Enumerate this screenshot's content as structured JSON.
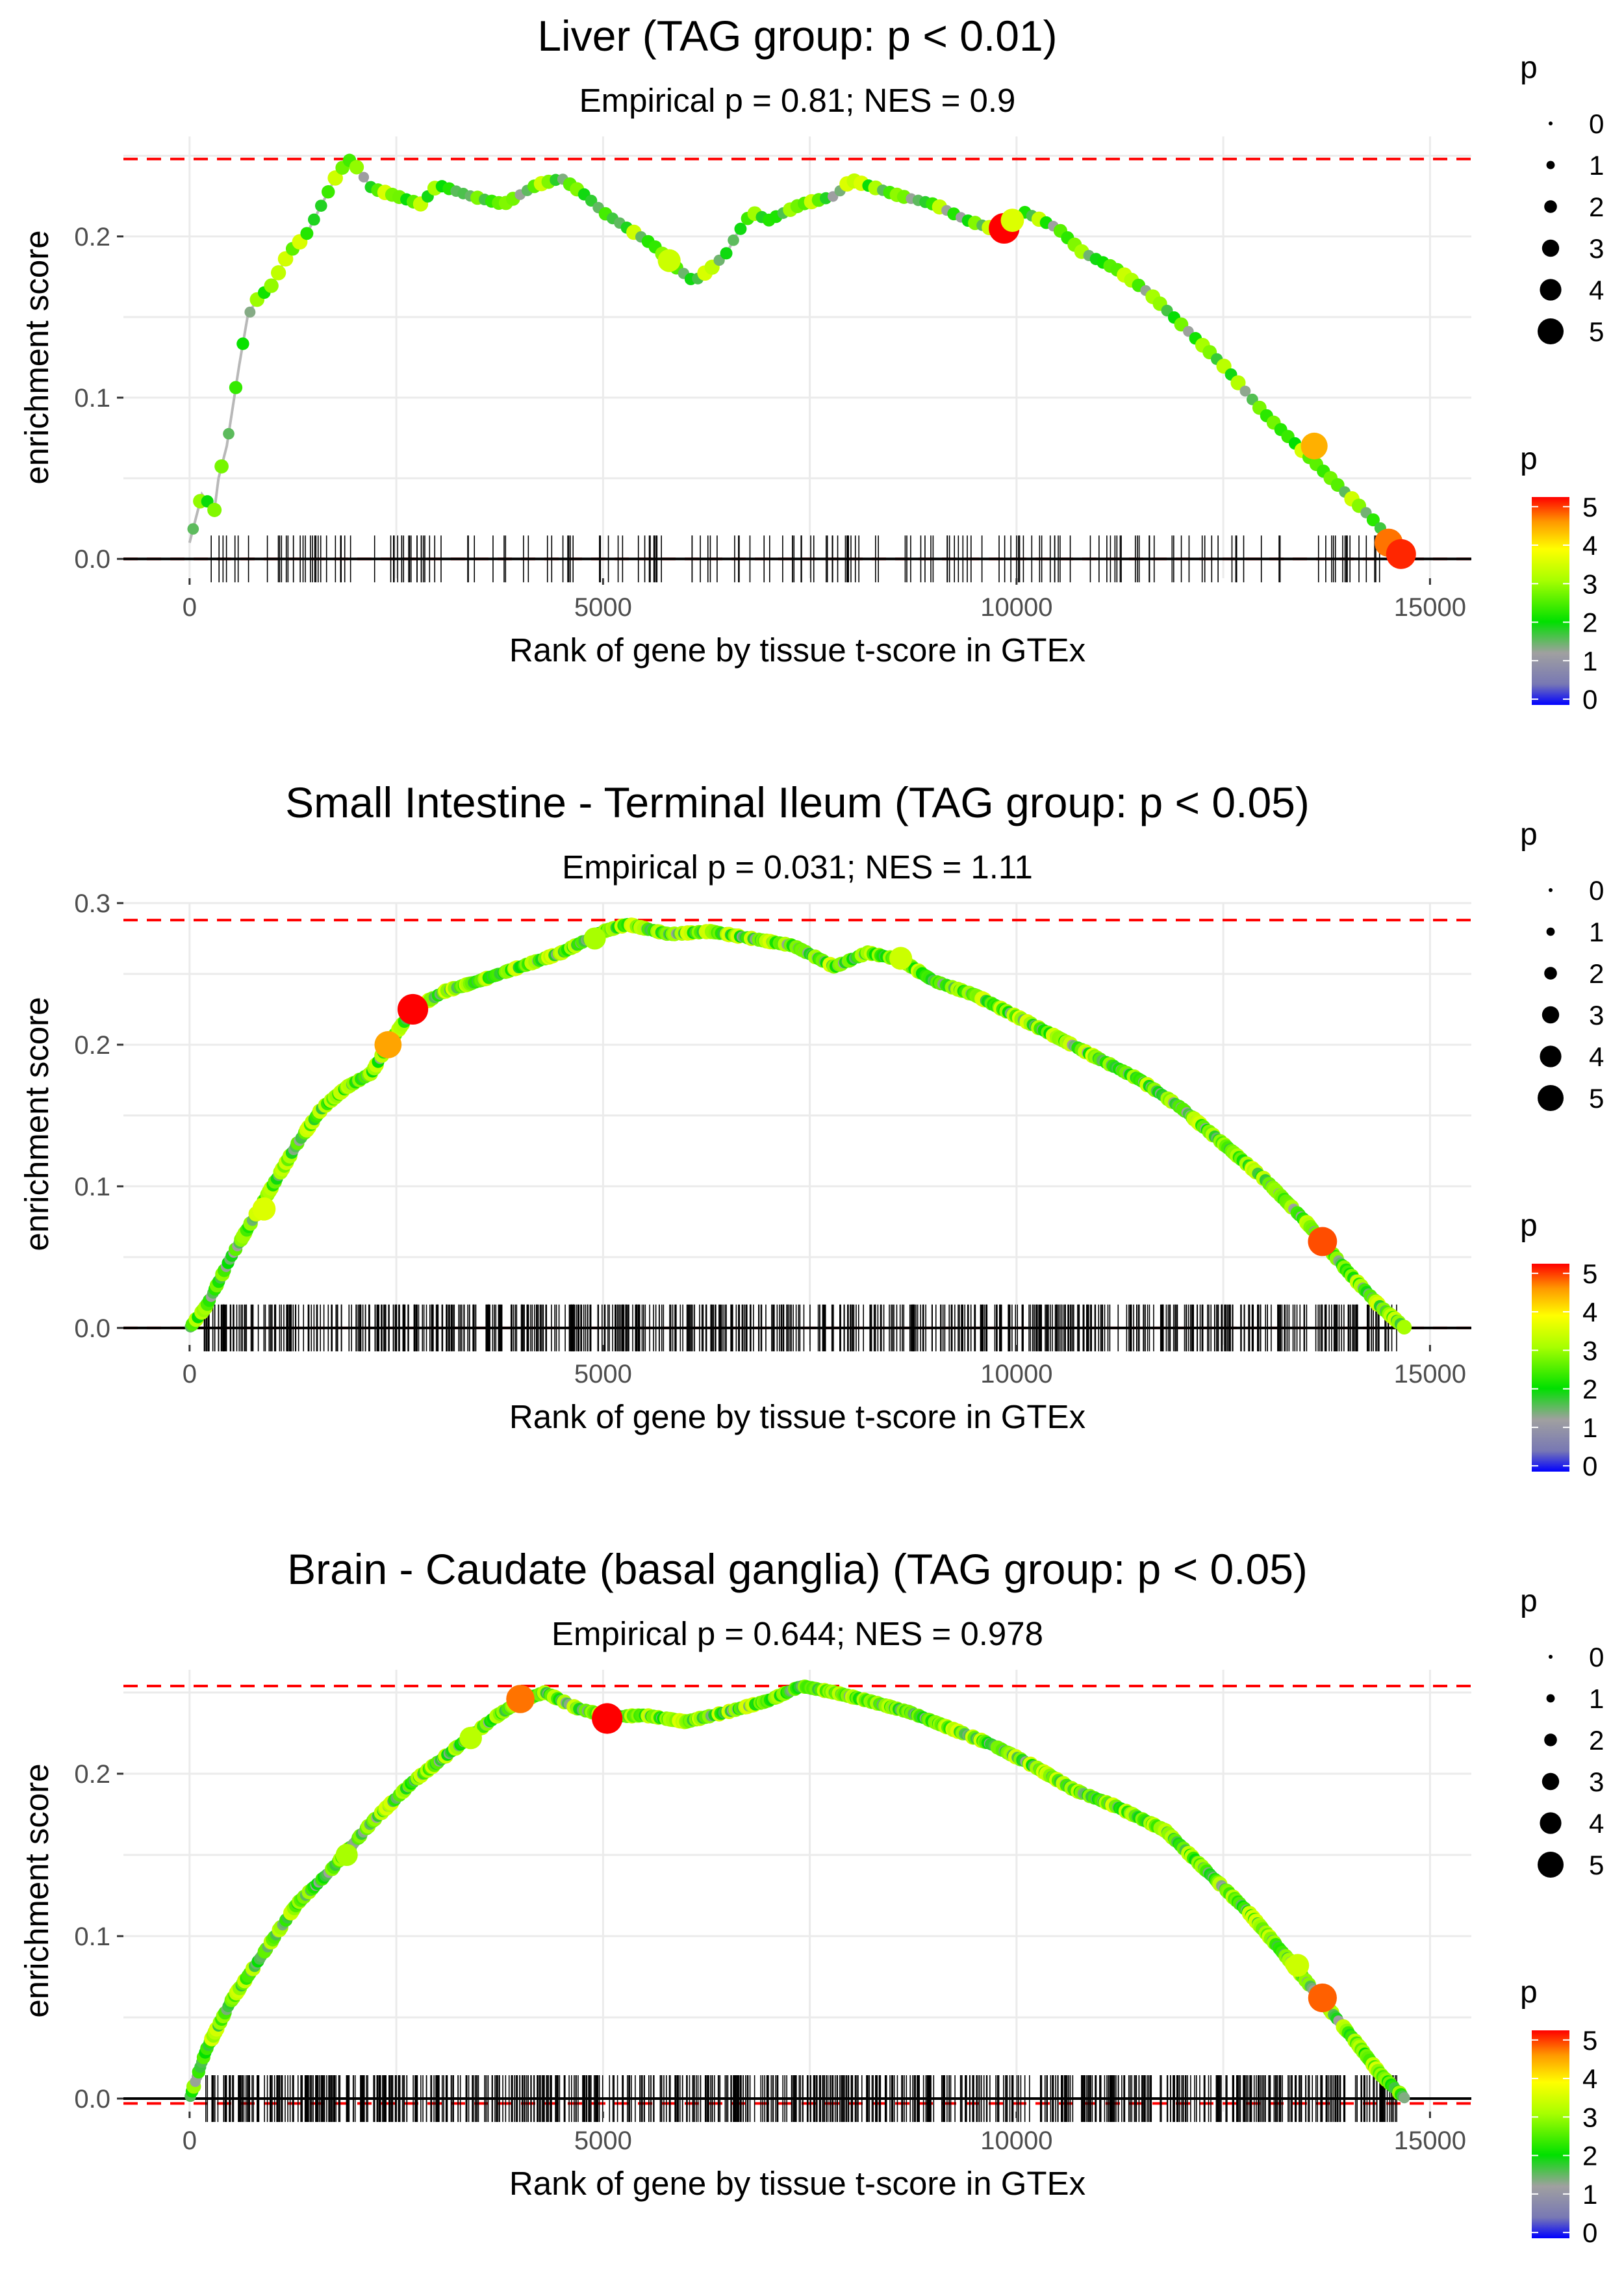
{
  "chart_data": [
    {
      "type": "line",
      "title": "Liver (TAG group: p < 0.01)",
      "subtitle": "Empirical p = 0.81; NES = 0.9",
      "xlabel": "Rank of gene by tissue t-score in GTEx",
      "ylabel": "enrichment score",
      "xlim": [
        -800,
        15500
      ],
      "ylim": [
        -0.012,
        0.262
      ],
      "x_ticks": [
        0,
        5000,
        10000,
        15000
      ],
      "x_tick_labels": [
        "0",
        "5000",
        "10000",
        "15000"
      ],
      "y_ticks": [
        0.0,
        0.1,
        0.2
      ],
      "y_tick_labels": [
        "0.0",
        "0.1",
        "0.2"
      ],
      "max_es": 0.248,
      "min_es": 0.0,
      "hit_count": 190,
      "curve": {
        "x": [
          0,
          150,
          300,
          350,
          450,
          600,
          700,
          800,
          1000,
          1200,
          1400,
          1600,
          1800,
          1950,
          2200,
          2500,
          2800,
          3000,
          3400,
          3800,
          4200,
          4500,
          4800,
          5000,
          5300,
          5600,
          5900,
          6100,
          6300,
          6500,
          6600,
          6800,
          7000,
          7400,
          7800,
          8000,
          8300,
          8600,
          9000,
          9400,
          9700,
          9900,
          10100,
          10300,
          10500,
          10800,
          11200,
          11600,
          12000,
          12500,
          13000,
          13500,
          14000,
          14300,
          14550,
          14700
        ],
        "y": [
          0.01,
          0.04,
          0.03,
          0.05,
          0.07,
          0.12,
          0.15,
          0.16,
          0.17,
          0.19,
          0.2,
          0.22,
          0.24,
          0.248,
          0.23,
          0.225,
          0.22,
          0.232,
          0.225,
          0.22,
          0.232,
          0.236,
          0.225,
          0.215,
          0.205,
          0.195,
          0.18,
          0.172,
          0.18,
          0.19,
          0.2,
          0.215,
          0.21,
          0.22,
          0.225,
          0.235,
          0.23,
          0.225,
          0.22,
          0.21,
          0.205,
          0.205,
          0.215,
          0.21,
          0.205,
          0.19,
          0.18,
          0.165,
          0.145,
          0.12,
          0.09,
          0.065,
          0.04,
          0.025,
          0.01,
          0.0
        ]
      },
      "highlight_points": [
        {
          "x": 9850,
          "y": 0.205,
          "p": 5.2
        },
        {
          "x": 13600,
          "y": 0.07,
          "p": 4.2
        },
        {
          "x": 14500,
          "y": 0.01,
          "p": 4.6
        },
        {
          "x": 14650,
          "y": 0.003,
          "p": 5.0
        },
        {
          "x": 5800,
          "y": 0.185,
          "p": 3.2
        },
        {
          "x": 9950,
          "y": 0.21,
          "p": 3.3
        }
      ],
      "legend_size": {
        "title": "p",
        "labels": [
          "0",
          "1",
          "2",
          "3",
          "4",
          "5"
        ]
      },
      "legend_color": {
        "title": "p",
        "labels": [
          "5",
          "4",
          "3",
          "2",
          "1",
          "0"
        ]
      }
    },
    {
      "type": "line",
      "title": "Small Intestine - Terminal Ileum (TAG group: p < 0.05)",
      "subtitle": "Empirical p = 0.031; NES = 1.11",
      "xlabel": "Rank of gene by tissue t-score in GTEx",
      "ylabel": "enrichment score",
      "xlim": [
        -800,
        15500
      ],
      "ylim": [
        -0.012,
        0.3
      ],
      "x_ticks": [
        0,
        5000,
        10000,
        15000
      ],
      "x_tick_labels": [
        "0",
        "5000",
        "10000",
        "15000"
      ],
      "y_ticks": [
        0.0,
        0.1,
        0.2,
        0.3
      ],
      "y_tick_labels": [
        "0.0",
        "0.1",
        "0.2",
        "0.3"
      ],
      "max_es": 0.288,
      "min_es": 0.0,
      "hit_count": 720,
      "curve": {
        "x": [
          0,
          200,
          500,
          800,
          1000,
          1300,
          1600,
          1900,
          2200,
          2400,
          2700,
          3100,
          3500,
          4000,
          4500,
          5000,
          5300,
          5800,
          6300,
          6800,
          7300,
          7800,
          8200,
          8600,
          9000,
          9500,
          10000,
          10500,
          11000,
          11500,
          12000,
          12500,
          13000,
          13500,
          14000,
          14400,
          14700
        ],
        "y": [
          0.0,
          0.015,
          0.05,
          0.08,
          0.1,
          0.13,
          0.155,
          0.17,
          0.18,
          0.2,
          0.225,
          0.238,
          0.245,
          0.255,
          0.265,
          0.28,
          0.285,
          0.278,
          0.28,
          0.275,
          0.27,
          0.255,
          0.265,
          0.26,
          0.245,
          0.235,
          0.22,
          0.205,
          0.19,
          0.175,
          0.155,
          0.13,
          0.105,
          0.075,
          0.04,
          0.015,
          0.0
        ]
      },
      "highlight_points": [
        {
          "x": 2700,
          "y": 0.225,
          "p": 5.2
        },
        {
          "x": 2400,
          "y": 0.2,
          "p": 4.3
        },
        {
          "x": 13700,
          "y": 0.061,
          "p": 4.8
        },
        {
          "x": 900,
          "y": 0.084,
          "p": 3.3
        },
        {
          "x": 8600,
          "y": 0.261,
          "p": 3.2
        },
        {
          "x": 4900,
          "y": 0.275,
          "p": 3.0
        }
      ],
      "legend_size": {
        "title": "p",
        "labels": [
          "0",
          "1",
          "2",
          "3",
          "4",
          "5"
        ]
      },
      "legend_color": {
        "title": "p",
        "labels": [
          "5",
          "4",
          "3",
          "2",
          "1",
          "0"
        ]
      }
    },
    {
      "type": "line",
      "title": "Brain - Caudate (basal ganglia) (TAG group: p < 0.05)",
      "subtitle": "Empirical p = 0.644; NES = 0.978",
      "xlabel": "Rank of gene by tissue t-score in GTEx",
      "ylabel": "enrichment score",
      "xlim": [
        -800,
        15500
      ],
      "ylim": [
        -0.008,
        0.264
      ],
      "x_ticks": [
        0,
        5000,
        10000,
        15000
      ],
      "x_tick_labels": [
        "0",
        "5000",
        "10000",
        "15000"
      ],
      "y_ticks": [
        0.0,
        0.1,
        0.2
      ],
      "y_tick_labels": [
        "0.0",
        "0.1",
        "0.2"
      ],
      "max_es": 0.254,
      "min_es": -0.003,
      "hit_count": 820,
      "curve": {
        "x": [
          0,
          200,
          500,
          900,
          1300,
          1700,
          2200,
          2700,
          3200,
          3700,
          4000,
          4300,
          4700,
          5100,
          5500,
          6000,
          6500,
          7000,
          7400,
          7800,
          8200,
          8700,
          9200,
          9700,
          10200,
          10700,
          11200,
          11800,
          12300,
          12800,
          13300,
          13700,
          14100,
          14400,
          14700
        ],
        "y": [
          0.0,
          0.03,
          0.06,
          0.09,
          0.12,
          0.14,
          0.17,
          0.195,
          0.215,
          0.235,
          0.245,
          0.25,
          0.24,
          0.235,
          0.236,
          0.232,
          0.238,
          0.245,
          0.254,
          0.25,
          0.245,
          0.238,
          0.228,
          0.218,
          0.205,
          0.19,
          0.18,
          0.165,
          0.14,
          0.115,
          0.085,
          0.06,
          0.035,
          0.015,
          0.0
        ]
      },
      "highlight_points": [
        {
          "x": 4000,
          "y": 0.246,
          "p": 4.6
        },
        {
          "x": 5050,
          "y": 0.234,
          "p": 5.2
        },
        {
          "x": 13700,
          "y": 0.062,
          "p": 4.7
        },
        {
          "x": 13400,
          "y": 0.082,
          "p": 3.2
        },
        {
          "x": 3400,
          "y": 0.222,
          "p": 3.1
        },
        {
          "x": 1900,
          "y": 0.15,
          "p": 3.0
        }
      ],
      "legend_size": {
        "title": "p",
        "labels": [
          "0",
          "1",
          "2",
          "3",
          "4",
          "5"
        ]
      },
      "legend_color": {
        "title": "p",
        "labels": [
          "5",
          "4",
          "3",
          "2",
          "1",
          "0"
        ]
      }
    }
  ]
}
